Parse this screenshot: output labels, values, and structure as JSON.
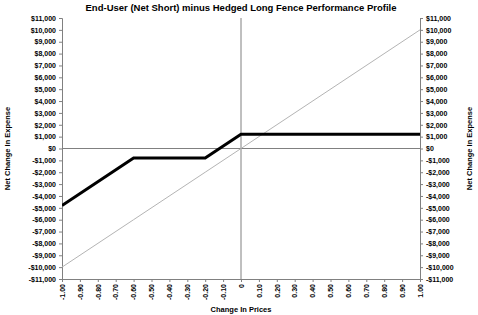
{
  "chart_data": {
    "type": "line",
    "title": "End-User (Net Short) minus Hedged Long Fence Performance Profile",
    "xlabel": "Change In Prices",
    "ylabel": "Net Change In Expense",
    "x": [
      -1,
      -0.6,
      -0.2,
      0,
      1
    ],
    "series": [
      {
        "color": "#000000",
        "values": [
          -4800,
          -800,
          -800,
          1200,
          1200
        ]
      },
      {
        "color": "#b4b4b4",
        "values": [
          -10000,
          -6000,
          -2000,
          0,
          10000
        ]
      }
    ],
    "xlim": [
      -1,
      1
    ],
    "xticks": [
      {
        "value": -1,
        "label": "-1.00"
      },
      {
        "value": -0.9,
        "label": "-0.90"
      },
      {
        "value": -0.8,
        "label": "-0.80"
      },
      {
        "value": -0.7,
        "label": "-0.70"
      },
      {
        "value": -0.6,
        "label": "-0.60"
      },
      {
        "value": -0.5,
        "label": "-0.50"
      },
      {
        "value": -0.4,
        "label": "-0.40"
      },
      {
        "value": -0.3,
        "label": "-0.30"
      },
      {
        "value": -0.2,
        "label": "-0.20"
      },
      {
        "value": -0.1,
        "label": "-0.10"
      },
      0,
      {
        "value": 0.1,
        "label": "0.10"
      },
      {
        "value": 0.2,
        "label": "0.20"
      },
      {
        "value": 0.3,
        "label": "0.30"
      },
      {
        "value": 0.4,
        "label": "0.40"
      },
      {
        "value": 0.5,
        "label": "0.50"
      },
      {
        "value": 0.6,
        "label": "0.60"
      },
      {
        "value": 0.7,
        "label": "0.70"
      },
      {
        "value": 0.8,
        "label": "0.80"
      },
      {
        "value": 0.9,
        "label": "0.90"
      },
      {
        "value": 1,
        "label": "1.00"
      }
    ],
    "ylim": [
      -11000,
      11000
    ],
    "yticks": [
      {
        "value": -11000,
        "label": "-$11,000"
      },
      {
        "value": -10000,
        "label": "-$10,000"
      },
      {
        "value": -9000,
        "label": "-$9,000"
      },
      {
        "value": -8000,
        "label": "-$8,000"
      },
      {
        "value": -7000,
        "label": "-$7,000"
      },
      {
        "value": -6000,
        "label": "-$6,000"
      },
      {
        "value": -5000,
        "label": "-$5,000"
      },
      {
        "value": -4000,
        "label": "-$4,000"
      },
      {
        "value": -3000,
        "label": "-$3,000"
      },
      {
        "value": -2000,
        "label": "-$2,000"
      },
      {
        "value": -1000,
        "label": "-$1,000"
      },
      {
        "value": 0,
        "label": "$0"
      },
      {
        "value": 1000,
        "label": "$1,000"
      },
      {
        "value": 2000,
        "label": "$2,000"
      },
      {
        "value": 3000,
        "label": "$3,000"
      },
      {
        "value": 4000,
        "label": "$4,000"
      },
      {
        "value": 5000,
        "label": "$5,000"
      },
      {
        "value": 6000,
        "label": "$6,000"
      },
      {
        "value": 7000,
        "label": "$7,000"
      },
      {
        "value": 8000,
        "label": "$8,000"
      },
      {
        "value": 9000,
        "label": "$9,000"
      },
      {
        "value": 10000,
        "label": "$10,000"
      },
      {
        "value": 11000,
        "label": "$11,000"
      }
    ],
    "grid": false
  }
}
